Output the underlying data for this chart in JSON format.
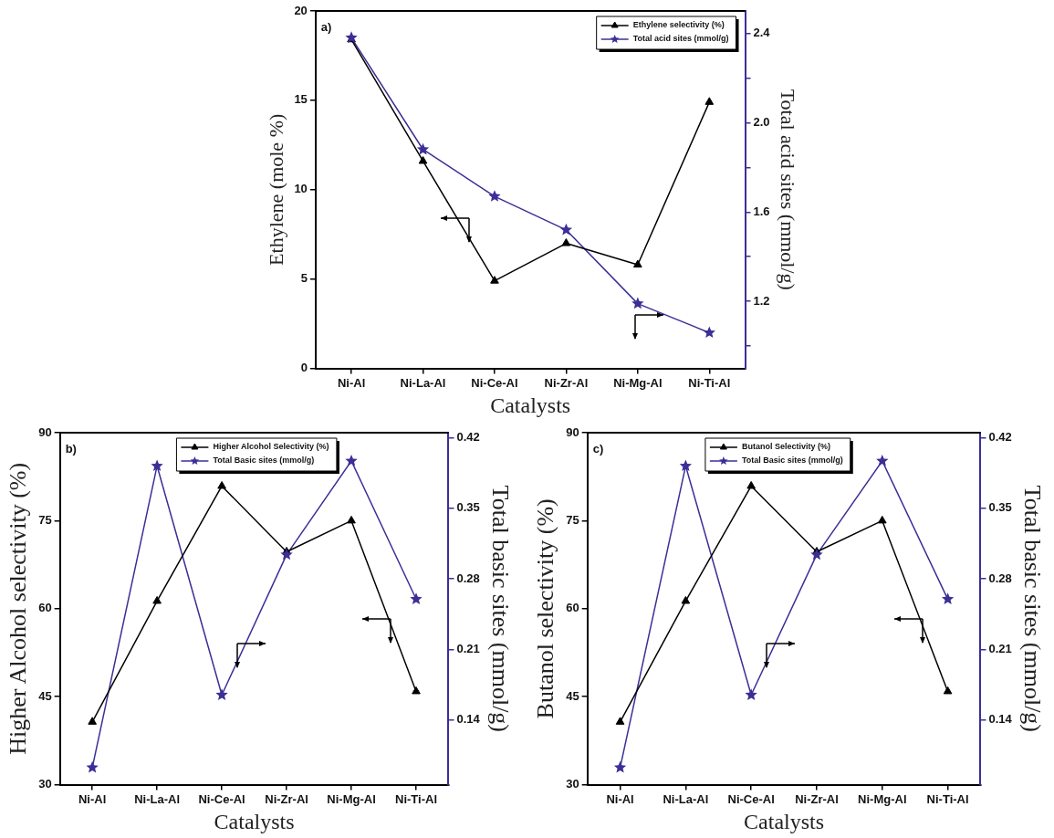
{
  "chart_data": [
    {
      "type": "line",
      "annotations": [
        "a)"
      ],
      "xlabel": "Catalysts",
      "ylabel": "Ethylene (mole %)",
      "y2label": "Total acid sites (mmol/g)",
      "categories": [
        "Ni-Al",
        "Ni-La-Al",
        "Ni-Ce-Al",
        "Ni-Zr-Al",
        "Ni-Mg-Al",
        "Ni-Ti-Al"
      ],
      "series": [
        {
          "name": "Ethylene selectivity (%)",
          "color": "#000000",
          "marker": "triangle",
          "values": [
            18.4,
            11.6,
            4.9,
            7.0,
            5.8,
            14.9
          ]
        },
        {
          "name": "Total acid sites (mmol/g)",
          "color": "#3b2f96",
          "marker": "star",
          "axis": "y2",
          "values": [
            2.38,
            1.88,
            1.67,
            1.52,
            1.19,
            1.06
          ]
        }
      ],
      "ylim": [
        0,
        20
      ],
      "yticks": [
        0,
        5,
        10,
        15,
        20
      ],
      "y2lim": [
        0.9,
        2.5
      ],
      "y2ticks": [
        {
          "value": 1.0,
          "label": null
        },
        1.2,
        {
          "value": 1.4,
          "label": null
        },
        1.6,
        {
          "value": 1.8,
          "label": null
        },
        {
          "value": 2.0,
          "label": "2.0"
        },
        {
          "value": 2.2,
          "label": null
        },
        2.4
      ],
      "grid": false,
      "legend": "top right"
    },
    {
      "type": "line",
      "annotations": [
        "b)"
      ],
      "xlabel": "Catalysts",
      "ylabel": "Higher Alcohol selectivity (%)",
      "y2label": "Total basic sites (mmol/g)",
      "categories": [
        "Ni-Al",
        "Ni-La-Al",
        "Ni-Ce-Al",
        "Ni-Zr-Al",
        "Ni-Mg-Al",
        "Ni-Ti-Al"
      ],
      "series": [
        {
          "name": "Higher Alcohol Selectivity (%)",
          "color": "#000000",
          "marker": "triangle",
          "values": [
            40.7,
            61.3,
            80.9,
            69.7,
            75.0,
            45.9
          ]
        },
        {
          "name": "Total Basic sites (mmol/g)",
          "color": "#3b2f96",
          "marker": "star",
          "axis": "y2",
          "values": [
            0.093,
            0.392,
            0.165,
            0.304,
            0.397,
            0.26
          ]
        }
      ],
      "ylim": [
        30,
        90
      ],
      "yticks": [
        30,
        45,
        60,
        75,
        90
      ],
      "y2lim": [
        0.076,
        0.425
      ],
      "y2ticks": [
        0.14,
        0.21,
        0.28,
        0.35,
        0.42
      ],
      "grid": false,
      "legend": "top"
    },
    {
      "type": "line",
      "annotations": [
        "c)"
      ],
      "xlabel": "Catalysts",
      "ylabel": "Butanol selectivity (%)",
      "y2label": "Total basic sites (mmol/g)",
      "categories": [
        "Ni-Al",
        "Ni-La-Al",
        "Ni-Ce-Al",
        "Ni-Zr-Al",
        "Ni-Mg-Al",
        "Ni-Ti-Al"
      ],
      "series": [
        {
          "name": "Butanol Selectivity (%)",
          "color": "#000000",
          "marker": "triangle",
          "values": [
            40.7,
            61.3,
            80.9,
            69.7,
            75.0,
            45.9
          ]
        },
        {
          "name": "Total Basic sites (mmol/g)",
          "color": "#3b2f96",
          "marker": "star",
          "axis": "y2",
          "values": [
            0.093,
            0.392,
            0.165,
            0.304,
            0.397,
            0.26
          ]
        }
      ],
      "ylim": [
        30,
        90
      ],
      "yticks": [
        30,
        45,
        60,
        75,
        90
      ],
      "y2lim": [
        0.076,
        0.425
      ],
      "y2ticks": [
        0.14,
        0.21,
        0.28,
        0.35,
        0.42
      ],
      "grid": false,
      "legend": "top"
    }
  ]
}
